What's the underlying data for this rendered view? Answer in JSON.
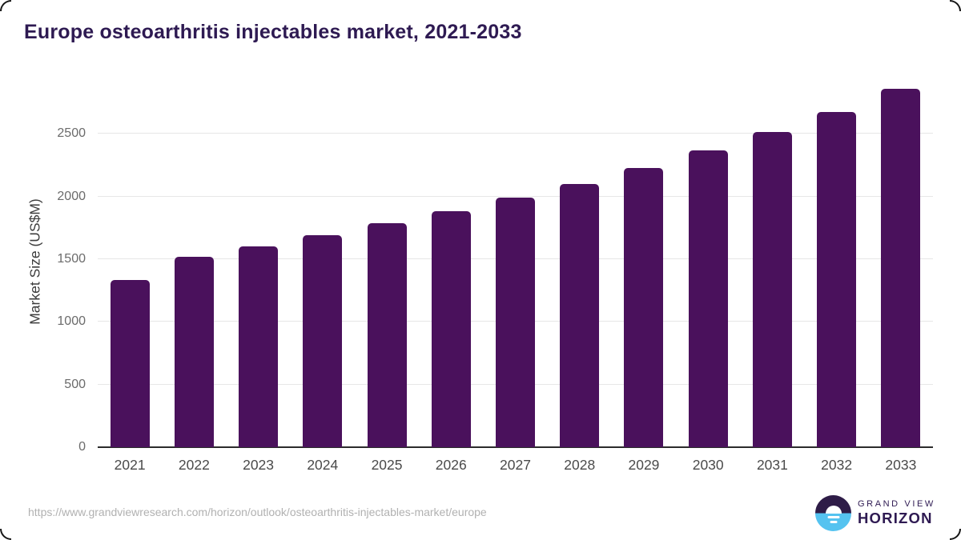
{
  "title": "Europe osteoarthritis injectables market, 2021-2033",
  "source_url": "https://www.grandviewresearch.com/horizon/outlook/osteoarthritis-injectables-market/europe",
  "logo": {
    "top": "GRAND VIEW",
    "bottom": "HORIZON"
  },
  "colors": {
    "bar": "#4a115c",
    "title": "#2e1a52",
    "gridline": "#e7e7e7",
    "axis_line": "#2b2b2b",
    "logo_dark": "#2e1c47",
    "logo_blue": "#55c3f0"
  },
  "chart_data": {
    "type": "bar",
    "title": "Europe osteoarthritis injectables market, 2021-2033",
    "categories": [
      "2021",
      "2022",
      "2023",
      "2024",
      "2025",
      "2026",
      "2027",
      "2028",
      "2029",
      "2030",
      "2031",
      "2032",
      "2033"
    ],
    "values": [
      1335,
      1520,
      1605,
      1690,
      1785,
      1885,
      1990,
      2100,
      2230,
      2370,
      2515,
      2675,
      2860
    ],
    "xlabel": "",
    "ylabel": "Market Size (US$M)",
    "yticks": [
      0,
      500,
      1000,
      1500,
      2000,
      2500
    ],
    "ylim": [
      0,
      2955
    ],
    "grid": true,
    "legend": false,
    "bar_color": "#4a115c"
  }
}
